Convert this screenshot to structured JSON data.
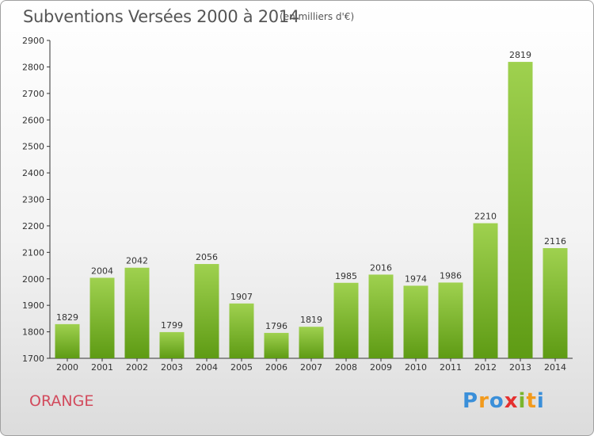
{
  "header": {
    "title": "Subventions Versées 2000 à 2014",
    "unit": "(en milliers d'€)"
  },
  "footer": {
    "commune": "ORANGE",
    "brand": [
      "P",
      "r",
      "o",
      "x",
      "i",
      "t",
      "i"
    ]
  },
  "colors": {
    "bar_top": "#9fd14f",
    "bar_bottom": "#5e9b14",
    "commune": "#d24a5c"
  },
  "chart_data": {
    "type": "bar",
    "title": "Subventions Versées 2000 à 2014",
    "subtitle": "(en milliers d'€)",
    "xlabel": "",
    "ylabel": "",
    "categories": [
      "2000",
      "2001",
      "2002",
      "2003",
      "2004",
      "2005",
      "2006",
      "2007",
      "2008",
      "2009",
      "2010",
      "2011",
      "2012",
      "2013",
      "2014"
    ],
    "values": [
      1829,
      2004,
      2042,
      1799,
      2056,
      1907,
      1796,
      1819,
      1985,
      2016,
      1974,
      1986,
      2210,
      2819,
      2116
    ],
    "ylim": [
      1700,
      2900
    ],
    "yticks": [
      1700,
      1800,
      1900,
      2000,
      2100,
      2200,
      2300,
      2400,
      2500,
      2600,
      2700,
      2800,
      2900
    ],
    "grid": false,
    "data_labels": true
  }
}
